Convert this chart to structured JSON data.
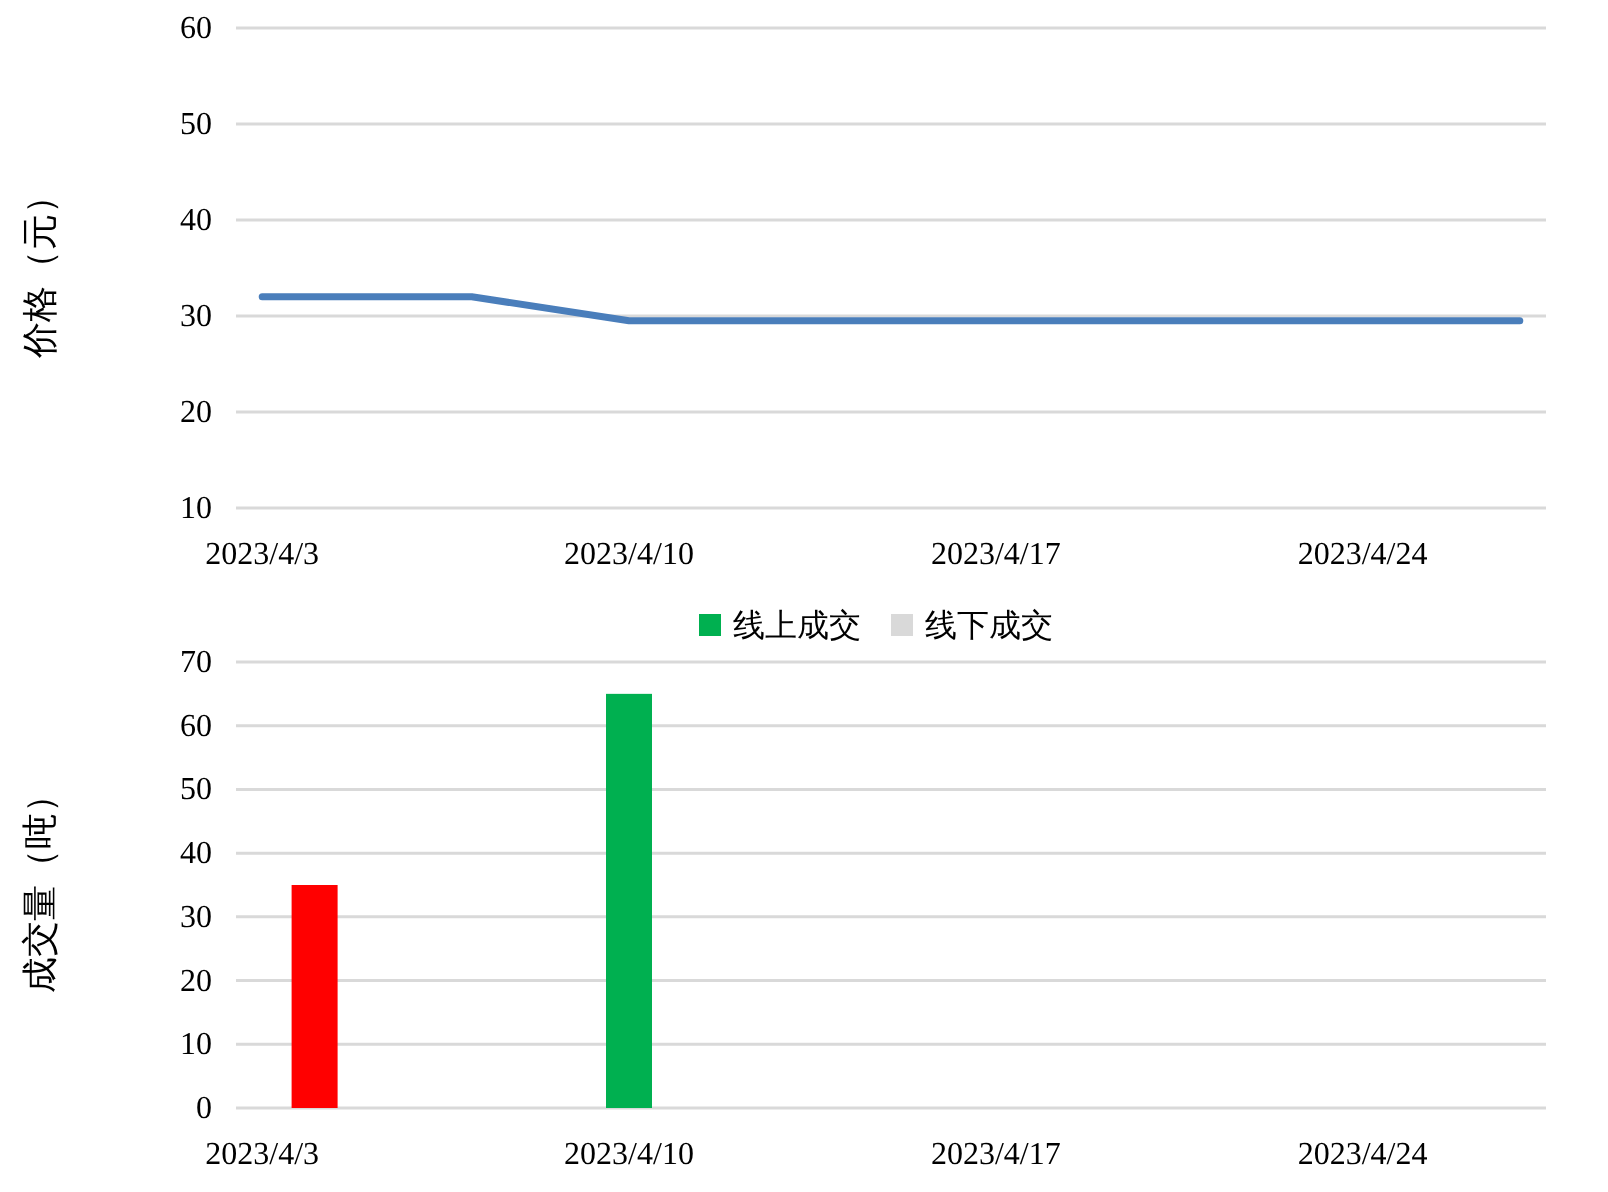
{
  "chart_data": [
    {
      "type": "line",
      "ylabel": "价格（元）",
      "x": [
        "2023-04-03",
        "2023-04-04",
        "2023-04-05",
        "2023-04-06",
        "2023-04-07",
        "2023-04-10",
        "2023-04-11",
        "2023-04-12",
        "2023-04-13",
        "2023-04-14",
        "2023-04-17",
        "2023-04-18",
        "2023-04-19",
        "2023-04-20",
        "2023-04-21",
        "2023-04-24",
        "2023-04-25",
        "2023-04-26",
        "2023-04-27"
      ],
      "series": [
        {
          "color": "#4a7ebb",
          "values": [
            32,
            32,
            32,
            32,
            32,
            29.5,
            29.5,
            29.5,
            29.5,
            29.5,
            29.5,
            29.5,
            29.5,
            29.5,
            29.5,
            29.5,
            29.5,
            29.5,
            29.5
          ]
        }
      ],
      "xlim": [
        "2023-04-02T12:00",
        "2023-04-27T12:00"
      ],
      "xticks": [
        {
          "value": "2023-04-03",
          "label": "2023/4/3"
        },
        {
          "value": "2023-04-10",
          "label": "2023/4/10"
        },
        {
          "value": "2023-04-17",
          "label": "2023/4/17"
        },
        {
          "value": "2023-04-24",
          "label": "2023/4/24"
        }
      ],
      "ylim": [
        10,
        60
      ],
      "yticks": [
        10,
        20,
        30,
        40,
        50,
        60
      ],
      "grid": "y",
      "legend": false
    },
    {
      "type": "bar",
      "ylabel": "成交量（吨）",
      "x": [
        "2023-04-04",
        "2023-04-10"
      ],
      "series": [
        {
          "name": "线上成交",
          "color": "#00b050",
          "values": [
            null,
            65
          ]
        },
        {
          "name": "线下成交",
          "color": "#d9d9d9",
          "values": [
            null,
            null
          ]
        },
        {
          "color": "#ff0000",
          "values": [
            35,
            null
          ]
        }
      ],
      "xlim": [
        "2023-04-02T12:00",
        "2023-04-27T12:00"
      ],
      "xticks": [
        {
          "value": "2023-04-03",
          "label": "2023/4/3"
        },
        {
          "value": "2023-04-10",
          "label": "2023/4/10"
        },
        {
          "value": "2023-04-17",
          "label": "2023/4/17"
        },
        {
          "value": "2023-04-24",
          "label": "2023/4/24"
        }
      ],
      "ylim": [
        0,
        70
      ],
      "yticks": [
        0,
        10,
        20,
        30,
        40,
        50,
        60,
        70
      ],
      "grid": "y",
      "legend": "top"
    }
  ]
}
